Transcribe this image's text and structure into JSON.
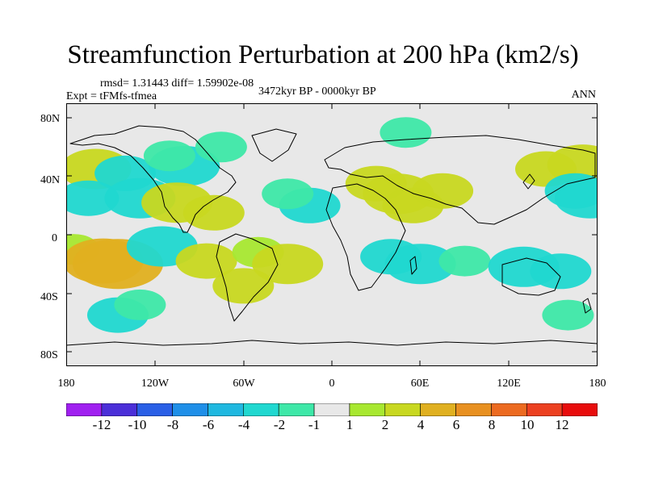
{
  "title": "Streamfunction Perturbation at 200 hPa (km2/s)",
  "stats": "rmsd= 1.31443  diff= 1.59902e-08",
  "experiment": "Expt = tFMfs-tfmea",
  "period": "3472kyr BP - 0000kyr BP",
  "season": "ANN",
  "axes": {
    "y_ticks": [
      "80N",
      "40N",
      "0",
      "40S",
      "80S"
    ],
    "x_ticks": [
      "180",
      "120W",
      "60W",
      "0",
      "60E",
      "120E",
      "180"
    ]
  },
  "colorbar": {
    "labels": [
      "-12",
      "-10",
      "-8",
      "-6",
      "-4",
      "-2",
      "-1",
      "1",
      "2",
      "4",
      "6",
      "8",
      "10",
      "12"
    ],
    "colors": [
      "#a020f0",
      "#4b2fd8",
      "#2a5fe6",
      "#1f8fe8",
      "#1fb8e0",
      "#20d8d0",
      "#3ee8a8",
      "#e8e8e8",
      "#a8e830",
      "#c8d820",
      "#e0b020",
      "#e89020",
      "#ec6a20",
      "#ec4020",
      "#e80c0c"
    ]
  },
  "anomalies": [
    {
      "lon": -160,
      "lat": 45,
      "value": 3
    },
    {
      "lon": -140,
      "lat": 42,
      "value": -2
    },
    {
      "lon": -100,
      "lat": 47,
      "value": -3
    },
    {
      "lon": -110,
      "lat": 54,
      "value": -1
    },
    {
      "lon": -75,
      "lat": 60,
      "value": -1
    },
    {
      "lon": -165,
      "lat": 25,
      "value": -2
    },
    {
      "lon": -130,
      "lat": 25,
      "value": -3
    },
    {
      "lon": -105,
      "lat": 22,
      "value": 3
    },
    {
      "lon": -80,
      "lat": 15,
      "value": 2
    },
    {
      "lon": -175,
      "lat": -10,
      "value": 1
    },
    {
      "lon": -155,
      "lat": -18,
      "value": 4
    },
    {
      "lon": -145,
      "lat": -20,
      "value": 5
    },
    {
      "lon": -115,
      "lat": -8,
      "value": -3
    },
    {
      "lon": -85,
      "lat": -18,
      "value": 2
    },
    {
      "lon": -50,
      "lat": -12,
      "value": 1
    },
    {
      "lon": -30,
      "lat": -20,
      "value": 3
    },
    {
      "lon": -60,
      "lat": -35,
      "value": 2
    },
    {
      "lon": -145,
      "lat": -55,
      "value": -2
    },
    {
      "lon": -130,
      "lat": -48,
      "value": -1
    },
    {
      "lon": -15,
      "lat": 20,
      "value": -2
    },
    {
      "lon": -30,
      "lat": 28,
      "value": -1
    },
    {
      "lon": 30,
      "lat": 35,
      "value": 2
    },
    {
      "lon": 45,
      "lat": 28,
      "value": 3
    },
    {
      "lon": 55,
      "lat": 20,
      "value": 2
    },
    {
      "lon": 75,
      "lat": 30,
      "value": 2
    },
    {
      "lon": 50,
      "lat": 70,
      "value": -1
    },
    {
      "lon": 145,
      "lat": 45,
      "value": 2
    },
    {
      "lon": 170,
      "lat": 48,
      "value": 3
    },
    {
      "lon": 165,
      "lat": 30,
      "value": -2
    },
    {
      "lon": 175,
      "lat": 25,
      "value": -3
    },
    {
      "lon": 40,
      "lat": -15,
      "value": -2
    },
    {
      "lon": 60,
      "lat": -20,
      "value": -3
    },
    {
      "lon": 90,
      "lat": -18,
      "value": -1
    },
    {
      "lon": 130,
      "lat": -22,
      "value": -3
    },
    {
      "lon": 155,
      "lat": -25,
      "value": -2
    },
    {
      "lon": 160,
      "lat": -55,
      "value": -1
    }
  ]
}
